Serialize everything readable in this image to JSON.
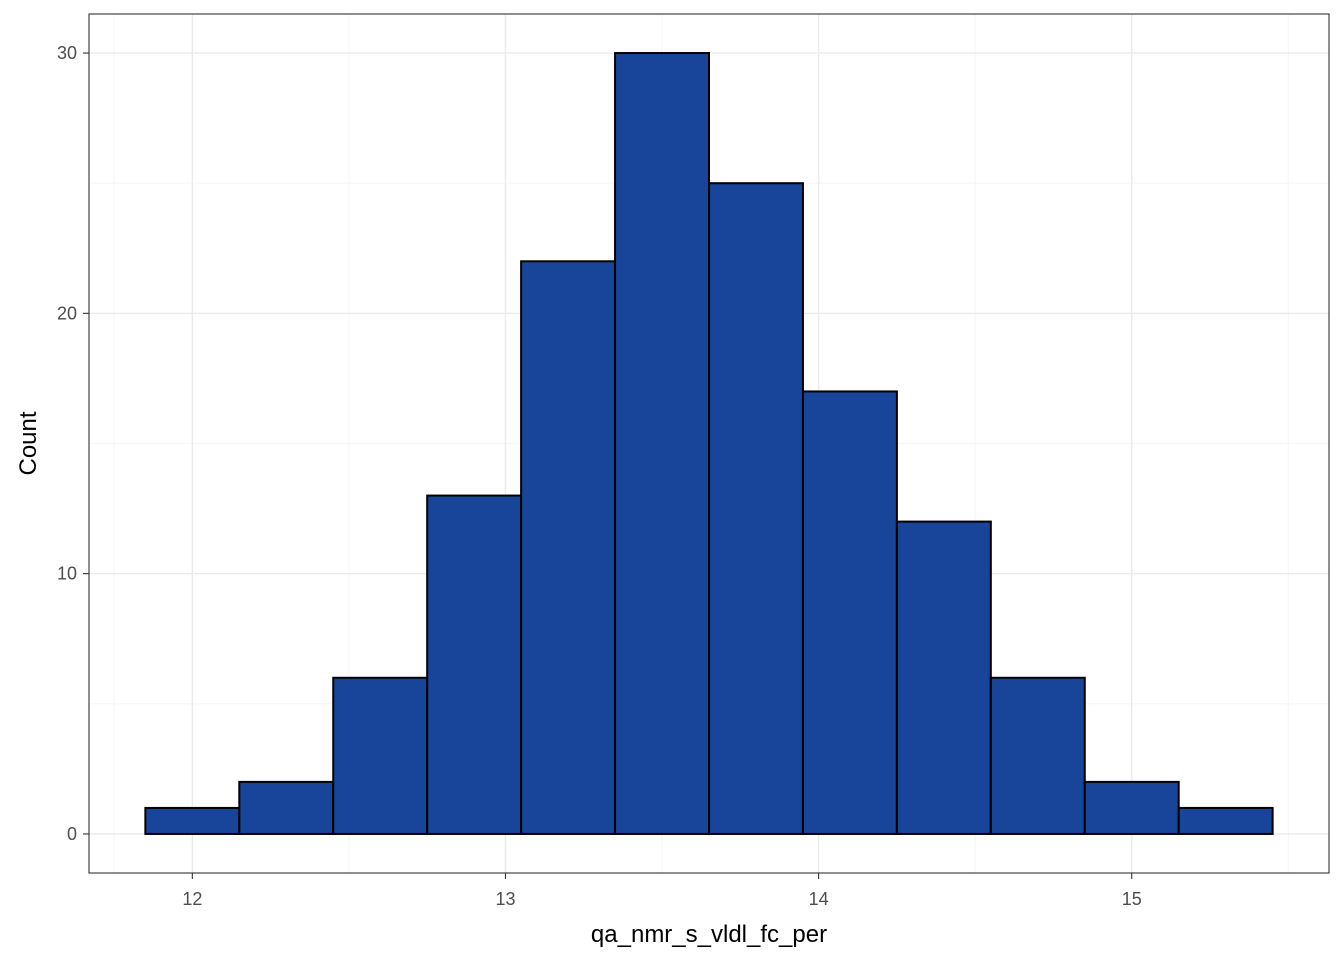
{
  "chart_data": {
    "type": "bar",
    "subtype": "histogram",
    "title": "",
    "xlabel": "qa_nmr_s_vldl_fc_per",
    "ylabel": "Count",
    "bin_width": 0.3,
    "bins": [
      {
        "x0": 11.85,
        "x1": 12.15,
        "count": 1
      },
      {
        "x0": 12.15,
        "x1": 12.45,
        "count": 2
      },
      {
        "x0": 12.45,
        "x1": 12.75,
        "count": 6
      },
      {
        "x0": 12.75,
        "x1": 13.05,
        "count": 13
      },
      {
        "x0": 13.05,
        "x1": 13.35,
        "count": 22
      },
      {
        "x0": 13.35,
        "x1": 13.65,
        "count": 30
      },
      {
        "x0": 13.65,
        "x1": 13.95,
        "count": 25
      },
      {
        "x0": 13.95,
        "x1": 14.25,
        "count": 17
      },
      {
        "x0": 14.25,
        "x1": 14.55,
        "count": 12
      },
      {
        "x0": 14.55,
        "x1": 14.85,
        "count": 6
      },
      {
        "x0": 14.85,
        "x1": 15.15,
        "count": 2
      },
      {
        "x0": 15.15,
        "x1": 15.45,
        "count": 1
      }
    ],
    "xlim": [
      11.67,
      15.63
    ],
    "ylim": [
      -1.5,
      31.5
    ],
    "x_ticks": [
      12,
      13,
      14,
      15
    ],
    "x_tick_labels": [
      "12",
      "13",
      "14",
      "15"
    ],
    "y_ticks": [
      0,
      10,
      20,
      30
    ],
    "y_tick_labels": [
      "0",
      "10",
      "20",
      "30"
    ],
    "x_minor_ticks": [
      11.75,
      12.5,
      13.5,
      14.5,
      15.5
    ],
    "y_minor_ticks": [
      5,
      15,
      25
    ],
    "grid": true,
    "legend": "none",
    "colors": {
      "bar_fill": "#184499",
      "bar_stroke": "#000000",
      "grid_major": "#ebebeb",
      "grid_minor": "#f5f5f5",
      "panel_border": "#333333"
    }
  }
}
